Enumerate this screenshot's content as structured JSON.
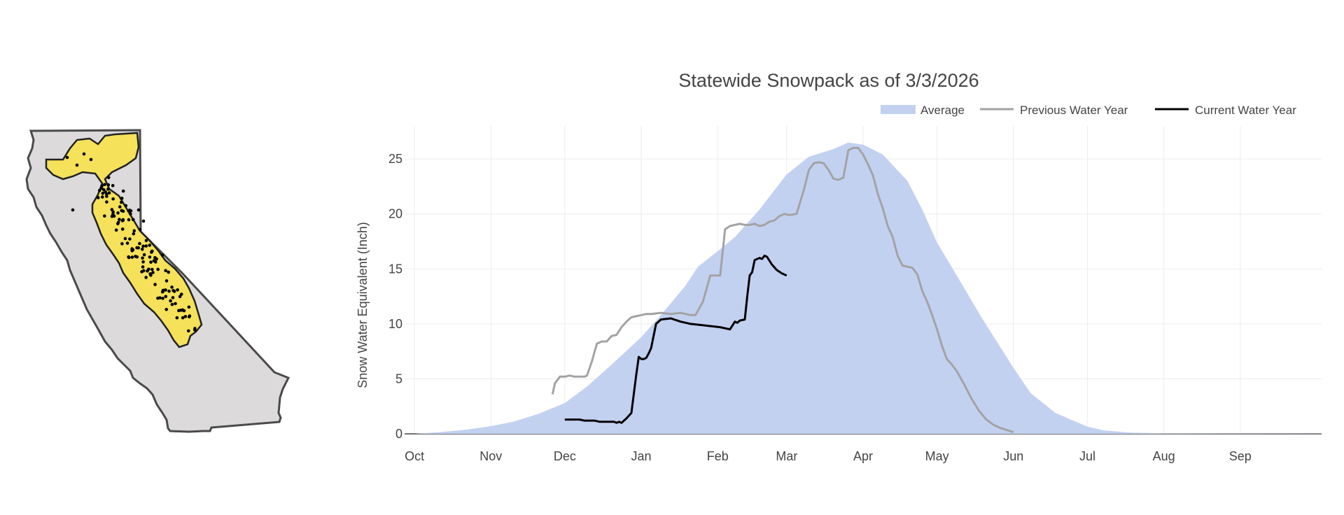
{
  "colors": {
    "average": "#c3d1f1",
    "previous": "#a3a3a3",
    "current": "#000000",
    "grid": "#ececec",
    "map_land": "#dcdadb",
    "map_outline": "#4a4a4a",
    "map_region": "#f5e15a"
  },
  "map": {
    "icon": "california-map-with-snow-stations"
  },
  "chart_data": {
    "type": "area",
    "title": "Statewide Snowpack as of 3/3/2026",
    "xlabel": "",
    "ylabel": "Snow Water Equivalent (Inch)",
    "x_ticks": [
      "Oct",
      "Nov",
      "Dec",
      "Jan",
      "Feb",
      "Mar",
      "Apr",
      "May",
      "Jun",
      "Jul",
      "Aug",
      "Sep"
    ],
    "x_tick_days": [
      0,
      31,
      61,
      92,
      123,
      151,
      182,
      212,
      243,
      273,
      304,
      335
    ],
    "x_range_days": [
      -4,
      368
    ],
    "y_ticks": [
      0,
      5,
      10,
      15,
      20,
      25
    ],
    "ylim": [
      0,
      28
    ],
    "grid": true,
    "legend_position": "top-right",
    "series": [
      {
        "name": "Average",
        "style": "area",
        "x": [
          0,
          10,
          20,
          31,
          40,
          50,
          61,
          70,
          80,
          92,
          100,
          110,
          115,
          123,
          130,
          140,
          151,
          160,
          170,
          176,
          182,
          190,
          200,
          206,
          212,
          220,
          230,
          243,
          250,
          260,
          273,
          280,
          290,
          304,
          320,
          368
        ],
        "y": [
          0.0,
          0.15,
          0.35,
          0.7,
          1.1,
          1.8,
          2.8,
          4.3,
          6.3,
          8.8,
          10.8,
          13.5,
          15.2,
          16.6,
          17.9,
          20.4,
          23.6,
          25.2,
          25.9,
          26.5,
          26.3,
          25.4,
          23.0,
          20.4,
          17.4,
          14.4,
          10.6,
          6.0,
          3.7,
          1.9,
          0.65,
          0.3,
          0.12,
          0.05,
          0.03,
          0.02
        ]
      },
      {
        "name": "Previous Water Year",
        "style": "line",
        "x": [
          56,
          57,
          59,
          61,
          63,
          65,
          67,
          69,
          70,
          72,
          74,
          76,
          78,
          80,
          82,
          84,
          86,
          88,
          90,
          92,
          94,
          96,
          100,
          104,
          108,
          110,
          112,
          114,
          117,
          120,
          122,
          124,
          126,
          128,
          130,
          132,
          134,
          136,
          138,
          140,
          142,
          144,
          146,
          148,
          150,
          152,
          155,
          158,
          160,
          162,
          164,
          166,
          168,
          170,
          172,
          174,
          176,
          178,
          180,
          182,
          184,
          186,
          188,
          190,
          192,
          194,
          196,
          198,
          200,
          202,
          204,
          206,
          208,
          210,
          212,
          214,
          216,
          218,
          220,
          223,
          226,
          229,
          232,
          235,
          238,
          241,
          243
        ],
        "y": [
          3.6,
          4.6,
          5.2,
          5.2,
          5.3,
          5.2,
          5.2,
          5.2,
          5.3,
          6.6,
          8.2,
          8.4,
          8.4,
          8.9,
          9.0,
          9.7,
          10.2,
          10.6,
          10.7,
          10.8,
          10.9,
          10.9,
          11.0,
          10.9,
          11.0,
          10.9,
          10.8,
          10.8,
          12.0,
          14.4,
          14.4,
          14.4,
          18.6,
          18.9,
          19.0,
          19.1,
          19.0,
          19.0,
          19.1,
          18.9,
          19.0,
          19.3,
          19.4,
          19.8,
          20.0,
          19.9,
          20.0,
          22.2,
          24.0,
          24.6,
          24.7,
          24.6,
          24.0,
          23.2,
          23.1,
          23.3,
          25.8,
          26.0,
          26.0,
          25.4,
          24.5,
          23.5,
          21.8,
          20.5,
          18.9,
          17.9,
          16.2,
          15.3,
          15.2,
          15.1,
          14.5,
          13.0,
          12.0,
          10.8,
          9.5,
          8.0,
          6.8,
          6.3,
          5.7,
          4.5,
          3.2,
          2.1,
          1.3,
          0.8,
          0.5,
          0.3,
          0.15
        ]
      },
      {
        "name": "Current Water Year",
        "style": "line",
        "x": [
          61,
          64,
          67,
          69,
          71,
          73,
          75,
          77,
          79,
          81,
          82,
          83,
          84,
          85,
          86,
          88,
          90,
          91,
          92,
          93,
          94,
          95,
          96,
          98,
          100,
          104,
          108,
          112,
          116,
          120,
          124,
          128,
          130,
          131,
          132,
          134,
          135,
          136,
          137,
          138,
          139,
          140,
          141,
          142,
          143,
          145,
          147,
          149,
          151
        ],
        "y": [
          1.3,
          1.3,
          1.3,
          1.2,
          1.2,
          1.2,
          1.1,
          1.1,
          1.1,
          1.1,
          1.0,
          1.1,
          1.0,
          1.2,
          1.4,
          1.9,
          5.4,
          7.0,
          6.8,
          6.8,
          6.9,
          7.3,
          7.8,
          10.0,
          10.4,
          10.5,
          10.2,
          10.0,
          9.9,
          9.8,
          9.7,
          9.5,
          10.2,
          10.1,
          10.3,
          10.4,
          12.5,
          14.4,
          14.7,
          15.8,
          15.9,
          16.0,
          15.9,
          16.2,
          16.1,
          15.4,
          14.9,
          14.6,
          14.4
        ]
      }
    ]
  }
}
